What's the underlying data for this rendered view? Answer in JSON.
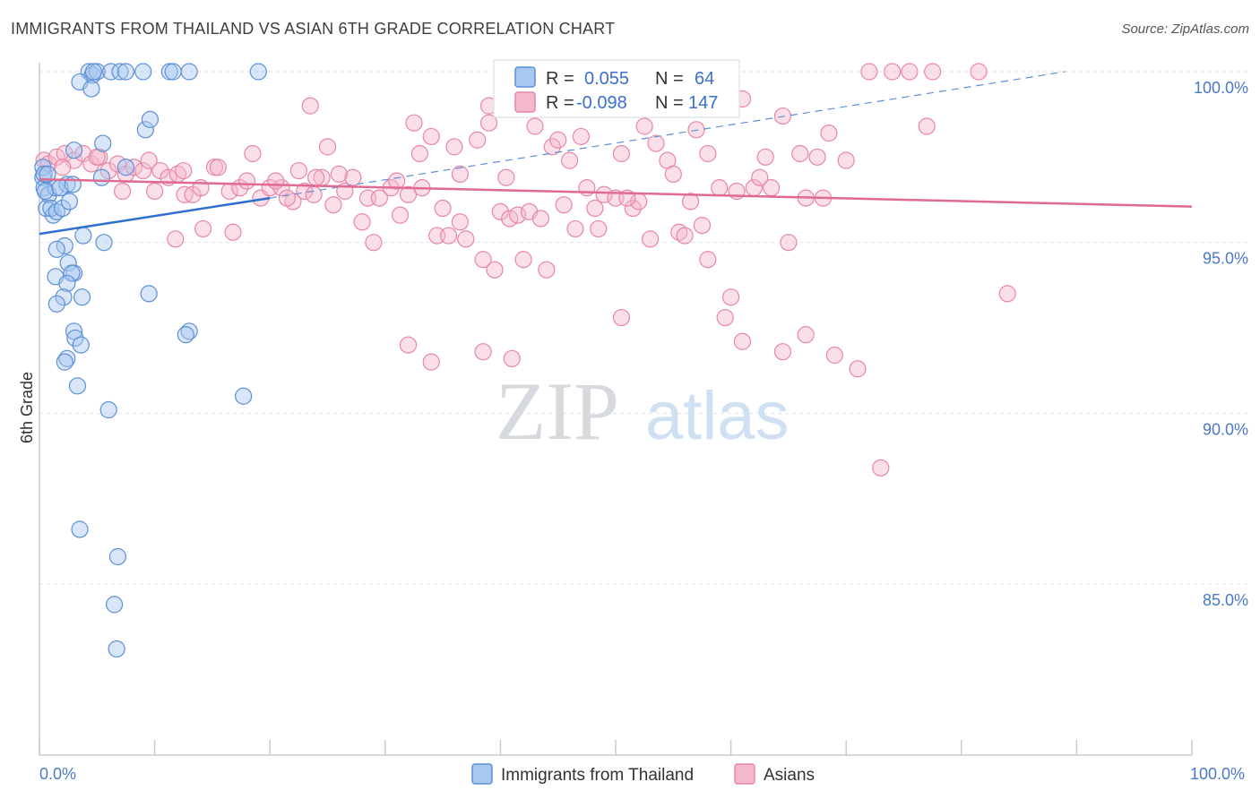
{
  "title": "IMMIGRANTS FROM THAILAND VS ASIAN 6TH GRADE CORRELATION CHART",
  "source": "Source: ZipAtlas.com",
  "watermark": {
    "zip": "ZIP",
    "atlas": "atlas"
  },
  "colors": {
    "blue_fill": "#a9c8f0",
    "blue_stroke": "#5b8fd6",
    "blue_line": "#2f6fd0",
    "pink_fill": "#f5b8cb",
    "pink_stroke": "#e886a6",
    "pink_line": "#e06a92",
    "tick_text": "#4a78c8",
    "grid": "#dde3ea"
  },
  "legend": {
    "rows": [
      {
        "r_label": "R = ",
        "r_value": "0.055",
        "n_label": "N = ",
        "n_value": "64"
      },
      {
        "r_label": "R = ",
        "r_value": "-0.098",
        "n_label": "N = ",
        "n_value": "147"
      }
    ]
  },
  "chart_data": {
    "type": "scatter",
    "title": "IMMIGRANTS FROM THAILAND VS ASIAN 6TH GRADE CORRELATION CHART",
    "xlabel": "",
    "ylabel": "6th Grade",
    "xlim": [
      0,
      100
    ],
    "ylim": [
      80.5,
      100.5
    ],
    "x_tick_labels": [
      "0.0%",
      "100.0%"
    ],
    "y_ticks": [
      85,
      90,
      95,
      100
    ],
    "y_tick_labels": [
      "85.0%",
      "90.0%",
      "95.0%",
      "100.0%"
    ],
    "grid": true,
    "legend_position": "top-center",
    "series": [
      {
        "name": "Immigrants from Thailand",
        "r": 0.055,
        "n": 64,
        "trend": {
          "x": [
            0,
            20
          ],
          "y": [
            95.25,
            96.3
          ]
        },
        "trend_extended": {
          "x": [
            20,
            89
          ],
          "y": [
            96.3,
            100.0
          ]
        },
        "points": [
          [
            0.3,
            96.9
          ],
          [
            0.4,
            96.6
          ],
          [
            0.6,
            96.0
          ],
          [
            0.8,
            96.4
          ],
          [
            1.2,
            95.8
          ],
          [
            1.4,
            96.6
          ],
          [
            0.3,
            97.2
          ],
          [
            0.5,
            96.5
          ],
          [
            1.0,
            96.0
          ],
          [
            1.5,
            95.9
          ],
          [
            2.0,
            96.0
          ],
          [
            2.4,
            96.7
          ],
          [
            1.8,
            96.6
          ],
          [
            2.6,
            96.2
          ],
          [
            0.4,
            97.0
          ],
          [
            0.7,
            97.0
          ],
          [
            3.0,
            97.7
          ],
          [
            5.5,
            97.9
          ],
          [
            7.5,
            97.2
          ],
          [
            9.2,
            98.3
          ],
          [
            9.6,
            98.6
          ],
          [
            5.4,
            96.9
          ],
          [
            4.3,
            100.0
          ],
          [
            4.6,
            99.9
          ],
          [
            5.0,
            100.0
          ],
          [
            6.2,
            100.0
          ],
          [
            7.0,
            100.0
          ],
          [
            7.5,
            100.0
          ],
          [
            9.0,
            100.0
          ],
          [
            11.3,
            100.0
          ],
          [
            11.6,
            100.0
          ],
          [
            13.0,
            100.0
          ],
          [
            19.0,
            100.0
          ],
          [
            3.5,
            99.7
          ],
          [
            4.5,
            99.5
          ],
          [
            4.7,
            100.0
          ],
          [
            3.8,
            95.2
          ],
          [
            5.6,
            95.0
          ],
          [
            2.2,
            94.9
          ],
          [
            1.5,
            94.8
          ],
          [
            2.5,
            94.4
          ],
          [
            3.0,
            94.1
          ],
          [
            2.8,
            94.1
          ],
          [
            1.4,
            94.0
          ],
          [
            2.4,
            93.8
          ],
          [
            2.1,
            93.4
          ],
          [
            3.7,
            93.4
          ],
          [
            1.5,
            93.2
          ],
          [
            9.5,
            93.5
          ],
          [
            3.0,
            92.4
          ],
          [
            3.1,
            92.2
          ],
          [
            3.6,
            92.0
          ],
          [
            13.0,
            92.4
          ],
          [
            12.7,
            92.3
          ],
          [
            2.4,
            91.6
          ],
          [
            2.2,
            91.5
          ],
          [
            3.3,
            90.8
          ],
          [
            6.0,
            90.1
          ],
          [
            17.7,
            90.5
          ],
          [
            3.5,
            86.6
          ],
          [
            6.8,
            85.8
          ],
          [
            6.5,
            84.4
          ],
          [
            6.7,
            83.1
          ],
          [
            2.9,
            96.7
          ]
        ]
      },
      {
        "name": "Asians",
        "r": -0.098,
        "n": 147,
        "trend": {
          "x": [
            0,
            100
          ],
          "y": [
            96.85,
            96.05
          ]
        },
        "points": [
          [
            0.4,
            97.4
          ],
          [
            0.8,
            97.3
          ],
          [
            1.5,
            97.5
          ],
          [
            2.2,
            97.6
          ],
          [
            3.0,
            97.4
          ],
          [
            3.8,
            97.6
          ],
          [
            4.5,
            97.3
          ],
          [
            5.2,
            97.5
          ],
          [
            6.0,
            97.1
          ],
          [
            6.8,
            97.3
          ],
          [
            7.5,
            97.0
          ],
          [
            8.2,
            97.2
          ],
          [
            9.0,
            97.1
          ],
          [
            9.5,
            97.4
          ],
          [
            10.5,
            97.1
          ],
          [
            11.2,
            96.9
          ],
          [
            12.0,
            97.0
          ],
          [
            12.6,
            96.4
          ],
          [
            13.3,
            96.4
          ],
          [
            14.0,
            96.6
          ],
          [
            15.2,
            97.2
          ],
          [
            16.5,
            96.5
          ],
          [
            17.4,
            96.6
          ],
          [
            18.0,
            96.8
          ],
          [
            19.2,
            96.3
          ],
          [
            20.0,
            96.6
          ],
          [
            21.0,
            96.6
          ],
          [
            22.0,
            96.2
          ],
          [
            23.0,
            96.5
          ],
          [
            23.8,
            96.4
          ],
          [
            24.5,
            96.9
          ],
          [
            25.5,
            96.1
          ],
          [
            26.5,
            96.5
          ],
          [
            27.2,
            96.9
          ],
          [
            28.5,
            96.3
          ],
          [
            29.5,
            96.3
          ],
          [
            30.5,
            96.6
          ],
          [
            31.3,
            95.8
          ],
          [
            32.0,
            96.4
          ],
          [
            33.2,
            96.6
          ],
          [
            34.5,
            95.2
          ],
          [
            35.5,
            95.2
          ],
          [
            36.5,
            95.6
          ],
          [
            37.0,
            95.1
          ],
          [
            38.5,
            94.5
          ],
          [
            39.5,
            94.2
          ],
          [
            40.0,
            95.9
          ],
          [
            40.8,
            95.7
          ],
          [
            41.5,
            95.8
          ],
          [
            42.5,
            95.9
          ],
          [
            43.5,
            95.7
          ],
          [
            44.0,
            94.2
          ],
          [
            45.5,
            96.1
          ],
          [
            46.5,
            95.4
          ],
          [
            47.5,
            96.6
          ],
          [
            48.2,
            96.0
          ],
          [
            49.0,
            96.4
          ],
          [
            50.0,
            96.3
          ],
          [
            51.5,
            96.0
          ],
          [
            52.0,
            96.2
          ],
          [
            53.0,
            95.1
          ],
          [
            55.5,
            95.3
          ],
          [
            56.5,
            96.2
          ],
          [
            57.5,
            95.5
          ],
          [
            59.0,
            96.6
          ],
          [
            60.5,
            96.5
          ],
          [
            62.0,
            96.6
          ],
          [
            63.5,
            96.6
          ],
          [
            65.0,
            95.0
          ],
          [
            66.5,
            96.3
          ],
          [
            68.0,
            96.3
          ],
          [
            2.0,
            97.2
          ],
          [
            5.0,
            97.5
          ],
          [
            7.2,
            96.5
          ],
          [
            10.0,
            96.5
          ],
          [
            11.8,
            95.1
          ],
          [
            12.5,
            97.1
          ],
          [
            14.2,
            95.4
          ],
          [
            15.5,
            97.2
          ],
          [
            16.8,
            95.3
          ],
          [
            18.5,
            97.6
          ],
          [
            20.5,
            96.8
          ],
          [
            21.5,
            96.3
          ],
          [
            22.5,
            97.1
          ],
          [
            24.0,
            96.9
          ],
          [
            25.0,
            97.8
          ],
          [
            26.0,
            97.0
          ],
          [
            28.0,
            95.6
          ],
          [
            29.0,
            95.0
          ],
          [
            31.0,
            96.8
          ],
          [
            32.5,
            98.5
          ],
          [
            33.0,
            97.6
          ],
          [
            34.0,
            98.1
          ],
          [
            35.0,
            96.0
          ],
          [
            36.0,
            97.8
          ],
          [
            38.0,
            98.0
          ],
          [
            39.0,
            98.5
          ],
          [
            40.5,
            96.9
          ],
          [
            42.0,
            94.5
          ],
          [
            43.0,
            98.4
          ],
          [
            44.5,
            97.8
          ],
          [
            45.0,
            98.0
          ],
          [
            46.0,
            97.4
          ],
          [
            47.0,
            98.1
          ],
          [
            48.5,
            95.4
          ],
          [
            50.5,
            97.6
          ],
          [
            51.0,
            96.3
          ],
          [
            52.5,
            98.4
          ],
          [
            53.5,
            97.9
          ],
          [
            54.5,
            97.4
          ],
          [
            55.0,
            97.0
          ],
          [
            56.0,
            95.2
          ],
          [
            57.0,
            98.3
          ],
          [
            58.0,
            97.6
          ],
          [
            59.5,
            98.9
          ],
          [
            61.0,
            99.2
          ],
          [
            62.5,
            96.9
          ],
          [
            63.0,
            97.5
          ],
          [
            64.5,
            98.7
          ],
          [
            66.0,
            97.6
          ],
          [
            67.5,
            97.5
          ],
          [
            68.5,
            98.2
          ],
          [
            70.0,
            97.4
          ],
          [
            72.0,
            100.0
          ],
          [
            74.0,
            100.0
          ],
          [
            75.5,
            100.0
          ],
          [
            77.5,
            100.0
          ],
          [
            81.5,
            100.0
          ],
          [
            77.0,
            98.4
          ],
          [
            38.5,
            91.8
          ],
          [
            41.0,
            91.6
          ],
          [
            32.0,
            92.0
          ],
          [
            34.0,
            91.5
          ],
          [
            50.5,
            92.8
          ],
          [
            59.5,
            92.8
          ],
          [
            61.0,
            92.1
          ],
          [
            64.5,
            91.8
          ],
          [
            66.5,
            92.3
          ],
          [
            69.0,
            91.7
          ],
          [
            71.0,
            91.3
          ],
          [
            73.0,
            88.4
          ],
          [
            84.0,
            93.5
          ],
          [
            58.0,
            94.5
          ],
          [
            60.0,
            93.4
          ],
          [
            39.0,
            99.0
          ],
          [
            45.0,
            99.0
          ],
          [
            58.5,
            99.0
          ],
          [
            47.5,
            99.0
          ],
          [
            49.0,
            99.0
          ],
          [
            23.5,
            99.0
          ],
          [
            36.5,
            97.0
          ]
        ]
      }
    ]
  },
  "bottom_legend": {
    "items": [
      "Immigrants from Thailand",
      "Asians"
    ]
  }
}
